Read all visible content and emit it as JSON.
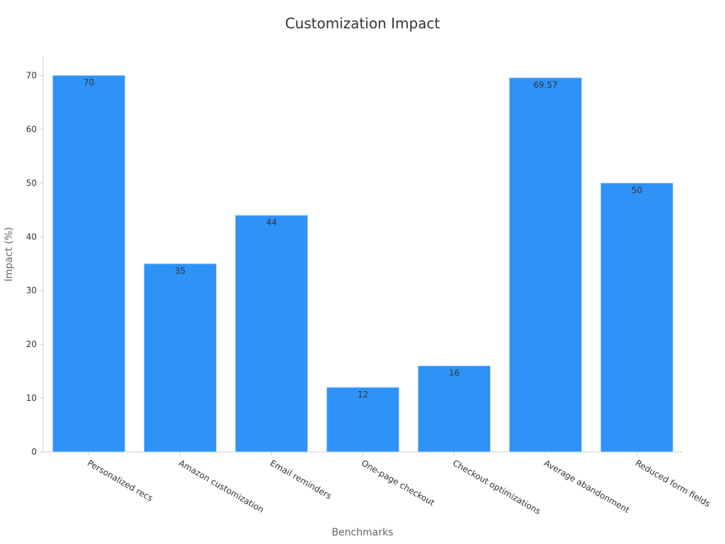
{
  "chart_data": {
    "type": "bar",
    "title": "Customization Impact",
    "xlabel": "Benchmarks",
    "ylabel": "Impact (%)",
    "categories": [
      "Personalized recs",
      "Amazon customization",
      "Email reminders",
      "One-page checkout",
      "Checkout optimizations",
      "Average abandonment",
      "Reduced form fields"
    ],
    "values": [
      70,
      35,
      44,
      12,
      16,
      69.57,
      50
    ],
    "data_labels": [
      "70",
      "35",
      "44",
      "12",
      "16",
      "69.57",
      "50"
    ],
    "ylim": [
      0,
      73.5
    ],
    "yticks": [
      0,
      10,
      20,
      30,
      40,
      50,
      60,
      70
    ],
    "grid": false,
    "colors": {
      "bar": "#2f92f7",
      "bar_edge": "#a9d0fb",
      "axis": "#cccccc"
    }
  }
}
